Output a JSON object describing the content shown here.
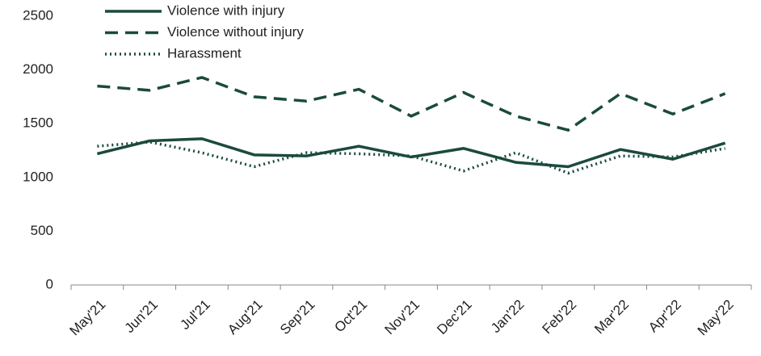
{
  "chart_data": {
    "type": "line",
    "categories": [
      "May'21",
      "Jun'21",
      "Jul'21",
      "Aug'21",
      "Sep'21",
      "Oct'21",
      "Nov'21",
      "Dec'21",
      "Jan'22",
      "Feb'22",
      "Mar'22",
      "Apr'22",
      "May'22"
    ],
    "series": [
      {
        "name": "Violence with injury",
        "color": "#1b4a3e",
        "style": "solid",
        "values": [
          1220,
          1340,
          1360,
          1210,
          1200,
          1290,
          1190,
          1270,
          1140,
          1100,
          1260,
          1170,
          1320
        ]
      },
      {
        "name": "Violence without injury",
        "color": "#1b4a3e",
        "style": "dashed",
        "values": [
          1850,
          1810,
          1930,
          1750,
          1710,
          1820,
          1570,
          1790,
          1570,
          1440,
          1780,
          1590,
          1780
        ]
      },
      {
        "name": "Harassment",
        "color": "#1b4a3e",
        "style": "dotted",
        "values": [
          1290,
          1330,
          1230,
          1100,
          1230,
          1220,
          1200,
          1060,
          1230,
          1040,
          1200,
          1190,
          1270
        ]
      }
    ],
    "ylim": [
      0,
      2500
    ],
    "yticks": [
      0,
      500,
      1000,
      1500,
      2000,
      2500
    ],
    "legend": "top-left"
  }
}
